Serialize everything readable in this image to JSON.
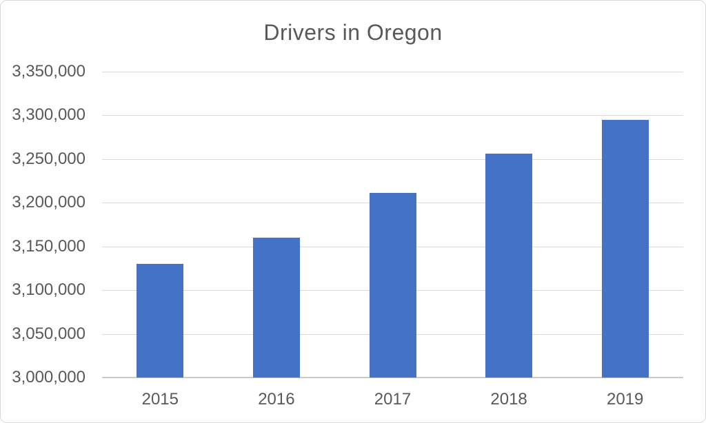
{
  "title": "Drivers in Oregon",
  "chart_data": {
    "type": "bar",
    "title": "Drivers in Oregon",
    "categories": [
      "2015",
      "2016",
      "2017",
      "2018",
      "2019"
    ],
    "values": [
      3130000,
      3160000,
      3211000,
      3256000,
      3295000
    ],
    "xlabel": "",
    "ylabel": "",
    "ylim": [
      3000000,
      3350000
    ],
    "ytick_step": 50000,
    "yticks": [
      {
        "value": 3000000,
        "label": "3,000,000"
      },
      {
        "value": 3050000,
        "label": "3,050,000"
      },
      {
        "value": 3100000,
        "label": "3,100,000"
      },
      {
        "value": 3150000,
        "label": "3,150,000"
      },
      {
        "value": 3200000,
        "label": "3,200,000"
      },
      {
        "value": 3250000,
        "label": "3,250,000"
      },
      {
        "value": 3300000,
        "label": "3,300,000"
      },
      {
        "value": 3350000,
        "label": "3,350,000"
      }
    ],
    "grid": true,
    "legend": false,
    "colors": {
      "bar": "#4472C4",
      "gridline": "#D9D9D9",
      "axis_line": "#C9C9C9",
      "text": "#595959",
      "frame_border": "#D9D9D9"
    }
  }
}
